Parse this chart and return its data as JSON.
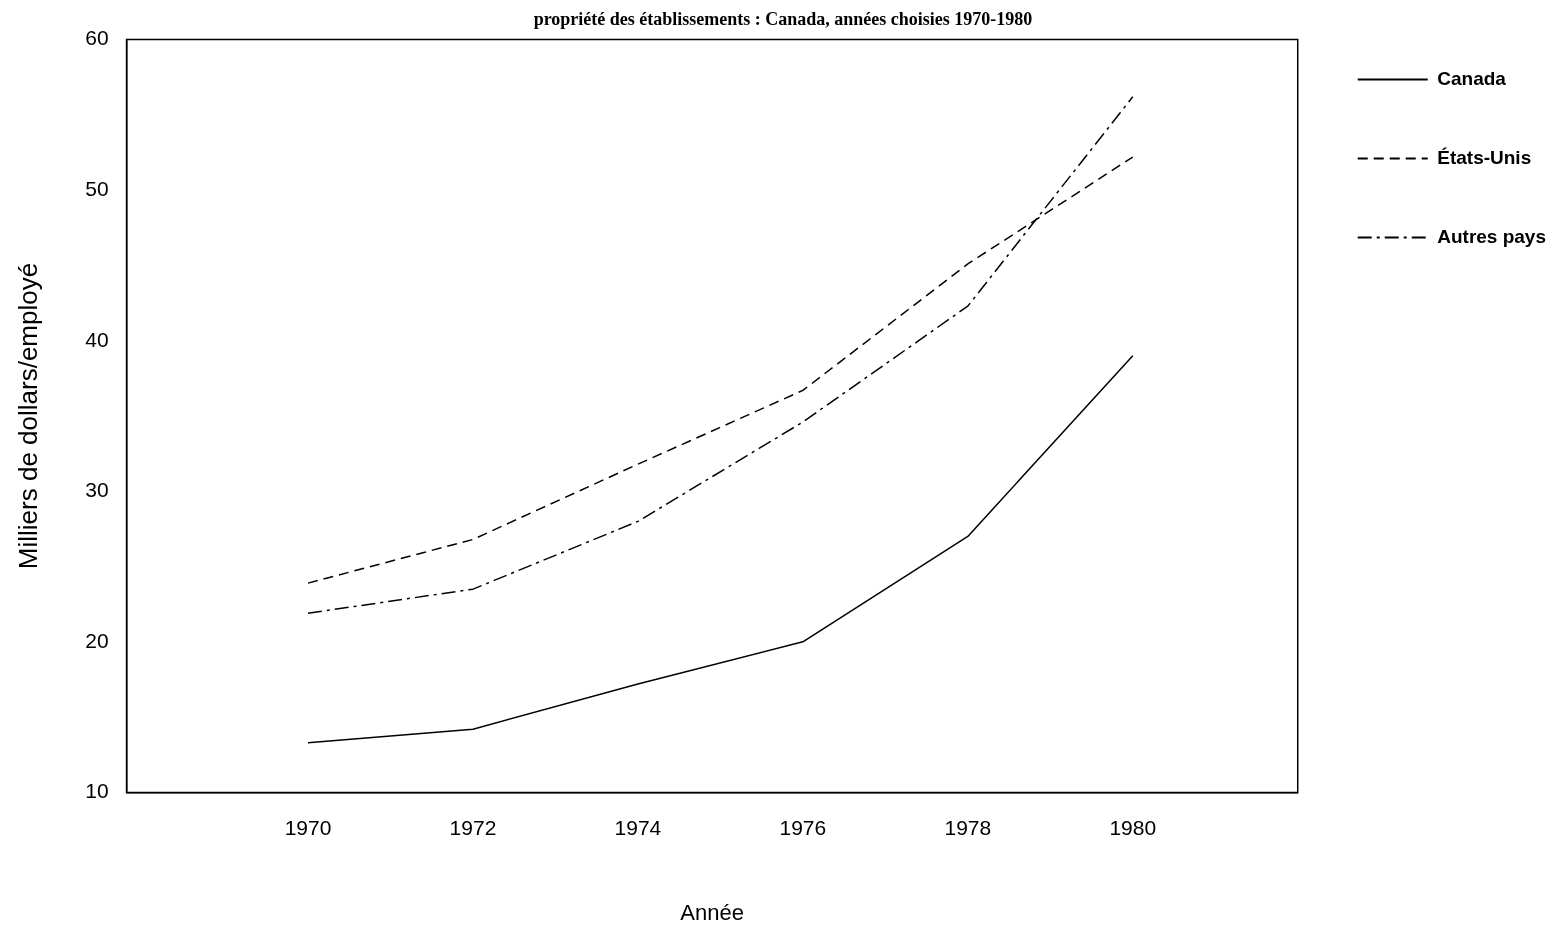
{
  "chart_data": {
    "type": "line",
    "title": "propriété des établissements : Canada, années choisies 1970-1980",
    "xlabel": "Année",
    "ylabel": "Milliers de dollars/employé",
    "x": [
      1970,
      1972,
      1974,
      1976,
      1978,
      1980
    ],
    "series": [
      {
        "name": "Canada",
        "color": "#000000",
        "line_style": "solid",
        "values": [
          13.3,
          14.2,
          17.2,
          20.0,
          27.0,
          39.0
        ]
      },
      {
        "name": "États-Unis",
        "color": "#000000",
        "line_style": "dashed",
        "values": [
          23.9,
          26.8,
          31.8,
          36.7,
          45.1,
          52.2
        ]
      },
      {
        "name": "Autres pays",
        "color": "#000000",
        "line_style": "dashdot",
        "values": [
          21.9,
          23.5,
          28.0,
          34.6,
          42.3,
          56.2
        ]
      }
    ],
    "xlim": [
      1967.8,
      1982
    ],
    "xticks": [
      1970,
      1972,
      1974,
      1976,
      1978,
      1980
    ],
    "ylim": [
      10,
      60
    ],
    "yticks": [
      10,
      20,
      30,
      40,
      50,
      60
    ],
    "grid": false,
    "legend": "right",
    "marker": "none"
  }
}
